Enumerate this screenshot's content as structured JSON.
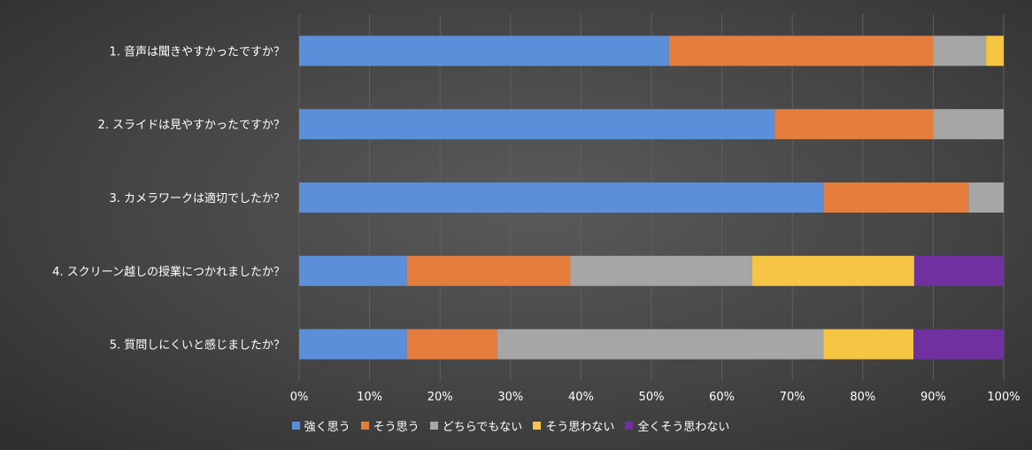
{
  "chart_data": {
    "type": "bar",
    "orientation": "horizontal",
    "stacked": "percent",
    "categories": [
      "1. 音声は聞きやすかったですか？",
      "2. スライドは見やすかったですか？",
      "3. カメラワークは適切でしたか？",
      "4. スクリーン越しの授業につかれましたか？",
      "5. 質問しにくいと感じましたか？"
    ],
    "series": [
      {
        "name": "強く思う",
        "color": "#5b8fd9",
        "values": [
          52.5,
          67.5,
          74.5,
          15.3,
          15.3
        ]
      },
      {
        "name": "そう思う",
        "color": "#e57e3c",
        "values": [
          37.5,
          22.5,
          20.5,
          23.2,
          12.8
        ]
      },
      {
        "name": "どちらでもない",
        "color": "#a6a6a6",
        "values": [
          7.5,
          10,
          5,
          25.8,
          46.3
        ]
      },
      {
        "name": "そう思わない",
        "color": "#f6c544",
        "values": [
          2.5,
          0,
          0,
          23.0,
          12.8
        ]
      },
      {
        "name": "全くそう思わない",
        "color": "#7030a0",
        "values": [
          0,
          0,
          0,
          12.7,
          12.8
        ]
      }
    ],
    "x_ticks": [
      "0%",
      "10%",
      "20%",
      "30%",
      "40%",
      "50%",
      "60%",
      "70%",
      "80%",
      "90%",
      "100%"
    ],
    "xlim": [
      0,
      100
    ],
    "grid": "vertical",
    "legend": "bottom"
  }
}
